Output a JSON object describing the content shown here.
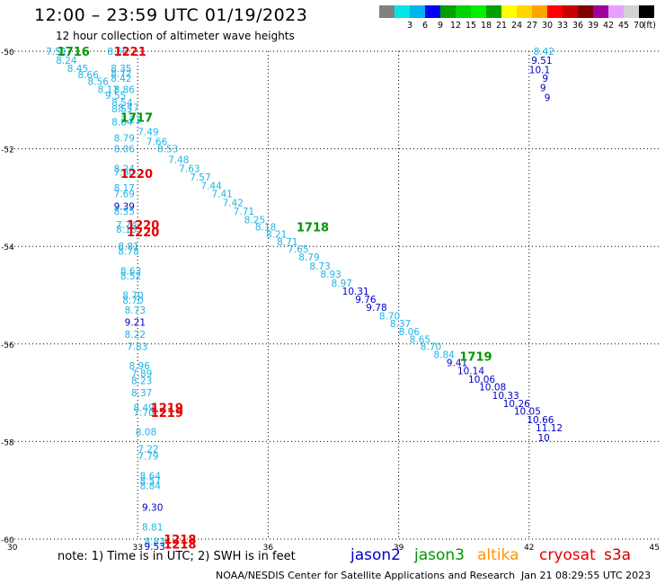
{
  "header": {
    "title": "12:00 – 23:59 UTC 01/19/2023",
    "subtitle": "12 hour collection of altimeter wave heights"
  },
  "color_scale": {
    "unit": "(ft)",
    "bins": [
      {
        "color": "#808080",
        "label": ""
      },
      {
        "color": "#00e5e5",
        "label": "3"
      },
      {
        "color": "#00b4f0",
        "label": "6"
      },
      {
        "color": "#0000ff",
        "label": "9"
      },
      {
        "color": "#00a000",
        "label": "12"
      },
      {
        "color": "#00d200",
        "label": "15"
      },
      {
        "color": "#00f000",
        "label": "18"
      },
      {
        "color": "#00a000",
        "label": "21"
      },
      {
        "color": "#ffff00",
        "label": "24"
      },
      {
        "color": "#ffd700",
        "label": "27"
      },
      {
        "color": "#ffa500",
        "label": "30"
      },
      {
        "color": "#ff0000",
        "label": "33"
      },
      {
        "color": "#c80000",
        "label": "36"
      },
      {
        "color": "#800000",
        "label": "39"
      },
      {
        "color": "#a000a0",
        "label": "42"
      },
      {
        "color": "#e6a0ff",
        "label": "45"
      },
      {
        "color": "#d2d2d2",
        "label": "70"
      },
      {
        "color": "#000000",
        "label": ""
      }
    ]
  },
  "chart_data": {
    "type": "scatter",
    "title": "12:00 – 23:59 UTC 01/19/2023",
    "subtitle": "12 hour collection of altimeter wave heights",
    "xlim": [
      30,
      45
    ],
    "ylim": [
      -60,
      -50
    ],
    "x_ticks": [
      30,
      33,
      36,
      39,
      42,
      45
    ],
    "y_ticks": [
      -50,
      -52,
      -54,
      -56,
      -58,
      -60
    ],
    "grid": true,
    "colors": {
      "cyan": "#1eb4e6",
      "blue": "#0000c8",
      "green": "#009600",
      "red": "#e60000"
    },
    "wave_labels": [
      {
        "lon": 30.89,
        "lat": -50.0,
        "text": "7.51",
        "c": "cyan"
      },
      {
        "lon": 31.12,
        "lat": -50.18,
        "text": "8.24",
        "c": "cyan"
      },
      {
        "lon": 31.38,
        "lat": -50.35,
        "text": "8.45",
        "c": "cyan"
      },
      {
        "lon": 31.62,
        "lat": -50.48,
        "text": "8.66",
        "c": "cyan"
      },
      {
        "lon": 31.85,
        "lat": -50.62,
        "text": "8.56",
        "c": "cyan"
      },
      {
        "lon": 32.08,
        "lat": -50.78,
        "text": "8.17",
        "c": "cyan"
      },
      {
        "lon": 32.3,
        "lat": -50.0,
        "text": "8.66",
        "c": "cyan"
      },
      {
        "lon": 32.38,
        "lat": -50.35,
        "text": "8.35",
        "c": "cyan"
      },
      {
        "lon": 32.38,
        "lat": -50.45,
        "text": "8.72",
        "c": "cyan"
      },
      {
        "lon": 32.38,
        "lat": -50.55,
        "text": "8.42",
        "c": "cyan"
      },
      {
        "lon": 32.45,
        "lat": -50.78,
        "text": "8.86",
        "c": "cyan"
      },
      {
        "lon": 32.25,
        "lat": -50.9,
        "text": "9.55",
        "c": "cyan"
      },
      {
        "lon": 32.4,
        "lat": -51.05,
        "text": "8.54",
        "c": "cyan"
      },
      {
        "lon": 32.4,
        "lat": -51.18,
        "text": "8.55",
        "c": "cyan"
      },
      {
        "lon": 32.55,
        "lat": -51.15,
        "text": "8.77",
        "c": "cyan"
      },
      {
        "lon": 32.4,
        "lat": -51.45,
        "text": "8.84",
        "c": "cyan"
      },
      {
        "lon": 32.6,
        "lat": -51.4,
        "text": "7.21",
        "c": "cyan"
      },
      {
        "lon": 33.0,
        "lat": -51.65,
        "text": "7.49",
        "c": "cyan"
      },
      {
        "lon": 33.2,
        "lat": -51.85,
        "text": "7.66",
        "c": "cyan"
      },
      {
        "lon": 33.45,
        "lat": -52.0,
        "text": "8.53",
        "c": "cyan"
      },
      {
        "lon": 32.45,
        "lat": -51.78,
        "text": "8.79",
        "c": "cyan"
      },
      {
        "lon": 32.45,
        "lat": -52.0,
        "text": "8.06",
        "c": "cyan"
      },
      {
        "lon": 33.7,
        "lat": -52.22,
        "text": "7.48",
        "c": "cyan"
      },
      {
        "lon": 33.95,
        "lat": -52.4,
        "text": "7.63",
        "c": "cyan"
      },
      {
        "lon": 34.2,
        "lat": -52.58,
        "text": "7.57",
        "c": "cyan"
      },
      {
        "lon": 34.45,
        "lat": -52.75,
        "text": "7.44",
        "c": "cyan"
      },
      {
        "lon": 34.7,
        "lat": -52.92,
        "text": "7.41",
        "c": "cyan"
      },
      {
        "lon": 34.95,
        "lat": -53.1,
        "text": "7.42",
        "c": "cyan"
      },
      {
        "lon": 35.2,
        "lat": -53.28,
        "text": "7.71",
        "c": "cyan"
      },
      {
        "lon": 35.45,
        "lat": -53.45,
        "text": "8.25",
        "c": "cyan"
      },
      {
        "lon": 35.7,
        "lat": -53.6,
        "text": "8.18",
        "c": "cyan"
      },
      {
        "lon": 35.95,
        "lat": -53.75,
        "text": "8.21",
        "c": "cyan"
      },
      {
        "lon": 36.2,
        "lat": -53.9,
        "text": "8.71",
        "c": "cyan"
      },
      {
        "lon": 36.45,
        "lat": -54.05,
        "text": "7.65",
        "c": "cyan"
      },
      {
        "lon": 36.7,
        "lat": -54.22,
        "text": "8.79",
        "c": "cyan"
      },
      {
        "lon": 36.95,
        "lat": -54.4,
        "text": "8.73",
        "c": "cyan"
      },
      {
        "lon": 37.2,
        "lat": -54.57,
        "text": "8.93",
        "c": "cyan"
      },
      {
        "lon": 37.45,
        "lat": -54.75,
        "text": "8.97",
        "c": "cyan"
      },
      {
        "lon": 37.7,
        "lat": -54.92,
        "text": "10.31",
        "c": "blue"
      },
      {
        "lon": 38.0,
        "lat": -55.08,
        "text": "9.76",
        "c": "blue"
      },
      {
        "lon": 38.25,
        "lat": -55.25,
        "text": "9.78",
        "c": "blue"
      },
      {
        "lon": 38.55,
        "lat": -55.42,
        "text": "8.70",
        "c": "cyan"
      },
      {
        "lon": 38.8,
        "lat": -55.58,
        "text": "8.37",
        "c": "cyan"
      },
      {
        "lon": 39.0,
        "lat": -55.75,
        "text": "8.06",
        "c": "cyan"
      },
      {
        "lon": 39.25,
        "lat": -55.9,
        "text": "8.65",
        "c": "cyan"
      },
      {
        "lon": 39.5,
        "lat": -56.05,
        "text": "8.70",
        "c": "cyan"
      },
      {
        "lon": 39.8,
        "lat": -56.22,
        "text": "8.84",
        "c": "cyan"
      },
      {
        "lon": 40.1,
        "lat": -56.38,
        "text": "9.41",
        "c": "blue"
      },
      {
        "lon": 40.35,
        "lat": -56.55,
        "text": "10.14",
        "c": "blue"
      },
      {
        "lon": 40.6,
        "lat": -56.72,
        "text": "10.06",
        "c": "blue"
      },
      {
        "lon": 40.85,
        "lat": -56.88,
        "text": "10.08",
        "c": "blue"
      },
      {
        "lon": 41.15,
        "lat": -57.05,
        "text": "10.33",
        "c": "blue"
      },
      {
        "lon": 41.4,
        "lat": -57.22,
        "text": "10.26",
        "c": "blue"
      },
      {
        "lon": 41.65,
        "lat": -57.38,
        "text": "10.05",
        "c": "blue"
      },
      {
        "lon": 41.95,
        "lat": -57.55,
        "text": "10.66",
        "c": "blue"
      },
      {
        "lon": 42.15,
        "lat": -57.72,
        "text": "11.12",
        "c": "blue"
      },
      {
        "lon": 42.2,
        "lat": -57.92,
        "text": "10",
        "c": "blue"
      },
      {
        "lon": 42.1,
        "lat": -50.0,
        "text": "8.42",
        "c": "cyan"
      },
      {
        "lon": 42.05,
        "lat": -50.18,
        "text": "9.51",
        "c": "blue"
      },
      {
        "lon": 42.0,
        "lat": -50.38,
        "text": "10.1",
        "c": "blue"
      },
      {
        "lon": 42.3,
        "lat": -50.55,
        "text": "9",
        "c": "blue"
      },
      {
        "lon": 42.25,
        "lat": -50.75,
        "text": "9",
        "c": "blue"
      },
      {
        "lon": 42.35,
        "lat": -50.95,
        "text": "9",
        "c": "blue"
      },
      {
        "lon": 32.45,
        "lat": -52.4,
        "text": "8.24",
        "c": "cyan"
      },
      {
        "lon": 32.45,
        "lat": -52.48,
        "text": "7.80",
        "c": "cyan"
      },
      {
        "lon": 32.45,
        "lat": -52.8,
        "text": "8.17",
        "c": "cyan"
      },
      {
        "lon": 32.45,
        "lat": -52.92,
        "text": "7.69",
        "c": "cyan"
      },
      {
        "lon": 32.45,
        "lat": -53.18,
        "text": "9.39",
        "c": "blue"
      },
      {
        "lon": 32.45,
        "lat": -53.28,
        "text": "8.55",
        "c": "cyan"
      },
      {
        "lon": 32.5,
        "lat": -53.55,
        "text": "7.74",
        "c": "cyan"
      },
      {
        "lon": 32.5,
        "lat": -53.65,
        "text": "8.13",
        "c": "cyan"
      },
      {
        "lon": 32.55,
        "lat": -54.0,
        "text": "8.81",
        "c": "cyan"
      },
      {
        "lon": 32.55,
        "lat": -54.1,
        "text": "8.78",
        "c": "cyan"
      },
      {
        "lon": 32.6,
        "lat": -54.5,
        "text": "8.63",
        "c": "cyan"
      },
      {
        "lon": 32.6,
        "lat": -54.6,
        "text": "8.52",
        "c": "cyan"
      },
      {
        "lon": 32.65,
        "lat": -55.0,
        "text": "8.70",
        "c": "cyan"
      },
      {
        "lon": 32.65,
        "lat": -55.1,
        "text": "8.70",
        "c": "cyan"
      },
      {
        "lon": 32.7,
        "lat": -55.3,
        "text": "8.73",
        "c": "cyan"
      },
      {
        "lon": 32.7,
        "lat": -55.55,
        "text": "9.21",
        "c": "blue"
      },
      {
        "lon": 32.7,
        "lat": -55.8,
        "text": "8.22",
        "c": "cyan"
      },
      {
        "lon": 32.75,
        "lat": -56.05,
        "text": "7.83",
        "c": "cyan"
      },
      {
        "lon": 32.8,
        "lat": -56.45,
        "text": "8.96",
        "c": "cyan"
      },
      {
        "lon": 32.85,
        "lat": -56.6,
        "text": "7.89",
        "c": "cyan"
      },
      {
        "lon": 32.85,
        "lat": -56.75,
        "text": "8.23",
        "c": "cyan"
      },
      {
        "lon": 32.85,
        "lat": -57.0,
        "text": "8.37",
        "c": "cyan"
      },
      {
        "lon": 32.9,
        "lat": -57.3,
        "text": "8.49",
        "c": "cyan"
      },
      {
        "lon": 32.9,
        "lat": -57.4,
        "text": "7.70",
        "c": "cyan"
      },
      {
        "lon": 32.95,
        "lat": -57.8,
        "text": "8.08",
        "c": "cyan"
      },
      {
        "lon": 33.0,
        "lat": -58.15,
        "text": "7.22",
        "c": "cyan"
      },
      {
        "lon": 33.0,
        "lat": -58.3,
        "text": "7.79",
        "c": "cyan"
      },
      {
        "lon": 33.05,
        "lat": -58.7,
        "text": "8.64",
        "c": "cyan"
      },
      {
        "lon": 33.05,
        "lat": -58.8,
        "text": "8.57",
        "c": "cyan"
      },
      {
        "lon": 33.05,
        "lat": -58.9,
        "text": "8.84",
        "c": "cyan"
      },
      {
        "lon": 33.1,
        "lat": -59.35,
        "text": "9.30",
        "c": "blue"
      },
      {
        "lon": 33.1,
        "lat": -59.75,
        "text": "8.81",
        "c": "cyan"
      },
      {
        "lon": 33.15,
        "lat": -60.05,
        "text": "8.83",
        "c": "cyan"
      },
      {
        "lon": 33.15,
        "lat": -60.15,
        "text": "9.53",
        "c": "blue"
      }
    ],
    "pass_times": [
      {
        "lon": 31.15,
        "lat": -50.0,
        "text": "1716",
        "c": "green"
      },
      {
        "lon": 32.45,
        "lat": -50.0,
        "text": "1221",
        "c": "red"
      },
      {
        "lon": 32.6,
        "lat": -51.35,
        "text": "1717",
        "c": "green"
      },
      {
        "lon": 32.6,
        "lat": -52.5,
        "text": "1220",
        "c": "red"
      },
      {
        "lon": 32.75,
        "lat": -53.55,
        "text": "1220",
        "c": "red"
      },
      {
        "lon": 32.75,
        "lat": -53.7,
        "text": "1220",
        "c": "red"
      },
      {
        "lon": 36.65,
        "lat": -53.6,
        "text": "1718",
        "c": "green"
      },
      {
        "lon": 40.4,
        "lat": -56.25,
        "text": "1719",
        "c": "green"
      },
      {
        "lon": 33.3,
        "lat": -57.3,
        "text": "1219",
        "c": "red"
      },
      {
        "lon": 33.3,
        "lat": -57.4,
        "text": "1219",
        "c": "red"
      },
      {
        "lon": 33.6,
        "lat": -60.0,
        "text": "1218",
        "c": "red"
      },
      {
        "lon": 33.6,
        "lat": -60.1,
        "text": "1218",
        "c": "red"
      }
    ]
  },
  "footer": {
    "note": "note:  1) Time is in UTC;  2) SWH is in feet",
    "satellites": [
      {
        "name": "jason2",
        "color": "#0000c8"
      },
      {
        "name": "jason3",
        "color": "#009600"
      },
      {
        "name": "altika",
        "color": "#ff9600"
      },
      {
        "name": "cryosat",
        "color": "#e60000"
      },
      {
        "name": "s3a",
        "color": "#c80000"
      }
    ],
    "credit": "NOAA/NESDIS Center for Satellite Applications and Research",
    "stamp": "Jan 21 08:29:55 UTC 2023"
  }
}
